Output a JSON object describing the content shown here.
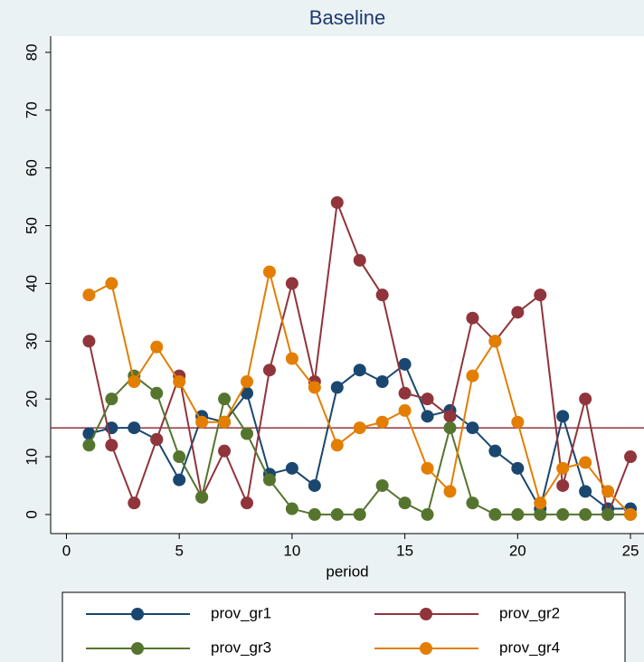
{
  "chart_data": {
    "type": "line",
    "title": "Baseline",
    "x_label": "period",
    "x": [
      1,
      2,
      3,
      4,
      5,
      6,
      7,
      8,
      9,
      10,
      11,
      12,
      13,
      14,
      15,
      16,
      17,
      18,
      19,
      20,
      21,
      22,
      23,
      24,
      25
    ],
    "series": [
      {
        "name": "prov_gr1",
        "color": "#1a476f",
        "values": [
          14,
          15,
          15,
          13,
          6,
          17,
          16,
          21,
          7,
          8,
          5,
          22,
          25,
          23,
          26,
          17,
          18,
          15,
          11,
          8,
          1,
          17,
          4,
          1,
          1
        ]
      },
      {
        "name": "prov_gr2",
        "color": "#90353b",
        "values": [
          30,
          12,
          2,
          13,
          24,
          3,
          11,
          2,
          25,
          40,
          23,
          54,
          44,
          38,
          21,
          20,
          17,
          34,
          30,
          35,
          38,
          5,
          20,
          0,
          10
        ]
      },
      {
        "name": "prov_gr3",
        "color": "#55752f",
        "values": [
          12,
          20,
          24,
          21,
          10,
          3,
          20,
          14,
          6,
          1,
          0,
          0,
          0,
          5,
          2,
          0,
          15,
          2,
          0,
          0,
          0,
          0,
          0,
          0,
          0
        ]
      },
      {
        "name": "prov_gr4",
        "color": "#e37e00",
        "values": [
          38,
          40,
          23,
          29,
          23,
          16,
          16,
          23,
          42,
          27,
          22,
          12,
          15,
          16,
          18,
          8,
          4,
          24,
          30,
          16,
          2,
          8,
          9,
          4,
          0
        ]
      }
    ],
    "reference_line": {
      "value": 15,
      "color": "#90353b"
    },
    "xlim": [
      -0.7,
      25.6
    ],
    "xticks": [
      0,
      5,
      10,
      15,
      20,
      25
    ],
    "ylim": [
      -3.3,
      82.8
    ],
    "yticks": [
      0,
      10,
      20,
      30,
      40,
      50,
      60,
      70,
      80
    ],
    "grid": false,
    "legend": "bottom"
  }
}
